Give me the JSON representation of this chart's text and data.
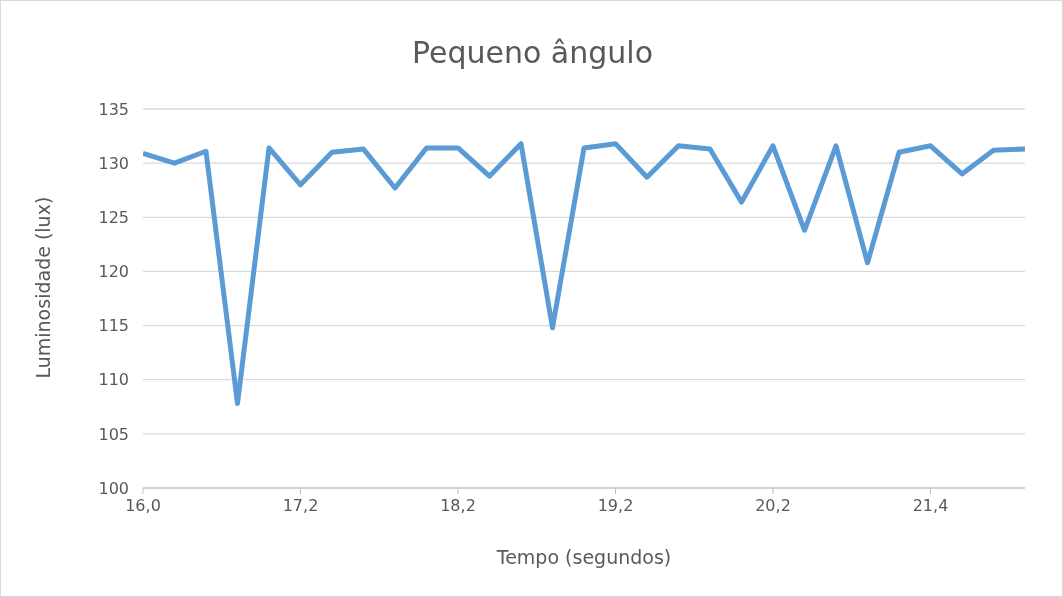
{
  "chart_data": {
    "type": "line",
    "title": "Pequeno ângulo",
    "xlabel": "Tempo (segundos)",
    "ylabel": "Luminosidade (lux)",
    "categories": [
      "16,0",
      null,
      null,
      null,
      null,
      "17,2",
      null,
      null,
      null,
      null,
      "18,2",
      null,
      null,
      null,
      null,
      "19,2",
      null,
      null,
      null,
      null,
      "20,2",
      null,
      null,
      null,
      null,
      "21,4",
      null,
      null,
      null
    ],
    "series": [
      {
        "color": "#5b9bd5",
        "values": [
          130.9,
          130.0,
          131.1,
          107.8,
          131.4,
          128.0,
          131.0,
          131.3,
          127.7,
          131.4,
          131.4,
          128.8,
          131.8,
          114.8,
          131.4,
          131.8,
          128.7,
          131.6,
          131.3,
          126.4,
          131.6,
          123.8,
          131.6,
          120.8,
          131.0,
          131.6,
          129.0,
          131.2,
          131.3
        ]
      }
    ],
    "ylim": [
      100,
      135
    ],
    "yticks": [
      100,
      105,
      110,
      115,
      120,
      125,
      130,
      135
    ],
    "grid": "y",
    "legend": false,
    "marker": "none",
    "line_style": "solid"
  }
}
